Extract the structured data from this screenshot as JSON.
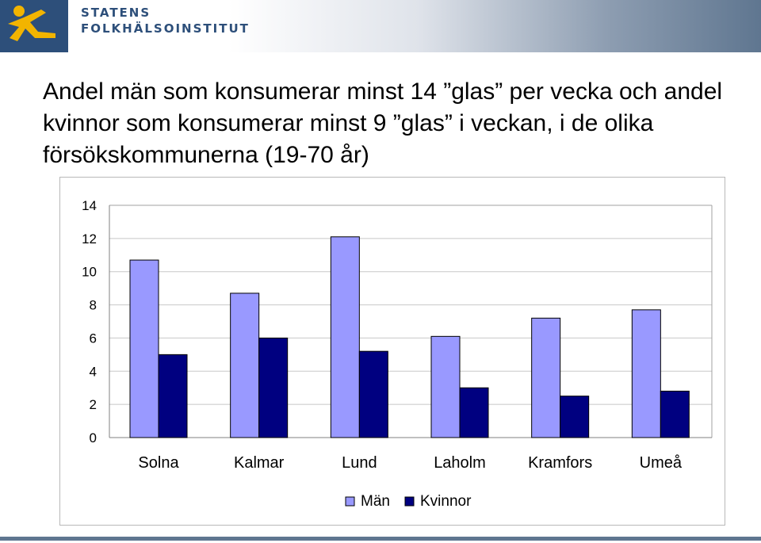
{
  "header": {
    "org_line1": "STATENS",
    "org_line2": "FOLKHÄLSOINSTITUT"
  },
  "title": "Andel män som konsumerar minst 14 ”glas” per vecka och andel kvinnor som konsumerar minst 9 ”glas” i veckan, i de olika försökskommunerna (19-70 år)",
  "chart_data": {
    "type": "bar",
    "title": "Andel män som konsumerar minst 14 ”glas” per vecka och andel kvinnor som konsumerar minst 9 ”glas” i veckan, i de olika försökskommunerna (19-70 år)",
    "xlabel": "",
    "ylabel": "",
    "categories": [
      "Solna",
      "Kalmar",
      "Lund",
      "Laholm",
      "Kramfors",
      "Umeå"
    ],
    "series": [
      {
        "name": "Män",
        "color": "#9999ff",
        "values": [
          10.7,
          8.7,
          12.1,
          6.1,
          7.2,
          7.7
        ]
      },
      {
        "name": "Kvinnor",
        "color": "#000080",
        "values": [
          5.0,
          6.0,
          5.2,
          3.0,
          2.5,
          2.8
        ]
      }
    ],
    "ylim": [
      0,
      14
    ],
    "yticks": [
      "0",
      "2",
      "4",
      "6",
      "8",
      "10",
      "12",
      "14"
    ],
    "grid": true,
    "legend_position": "bottom"
  }
}
